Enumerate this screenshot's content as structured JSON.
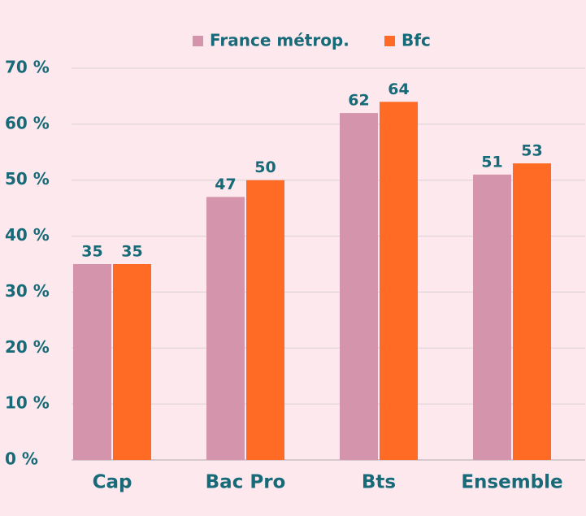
{
  "chart_data": {
    "type": "bar",
    "categories": [
      "Cap",
      "Bac Pro",
      "Bts",
      "Ensemble"
    ],
    "series": [
      {
        "name": "France métrop.",
        "color": "#d494ab",
        "values": [
          35,
          47,
          62,
          51
        ]
      },
      {
        "name": "Bfc",
        "color": "#ff6a24",
        "values": [
          35,
          50,
          64,
          53
        ]
      }
    ],
    "ylim": [
      0,
      70
    ],
    "yticks": [
      {
        "value": 0,
        "label": "0 %"
      },
      {
        "value": 10,
        "label": "10 %"
      },
      {
        "value": 20,
        "label": "20 %"
      },
      {
        "value": 30,
        "label": "30 %"
      },
      {
        "value": 40,
        "label": "40 %"
      },
      {
        "value": 50,
        "label": "50 %"
      },
      {
        "value": 60,
        "label": "60 %"
      },
      {
        "value": 70,
        "label": "70 %"
      }
    ],
    "grid": true,
    "legend": "top"
  }
}
